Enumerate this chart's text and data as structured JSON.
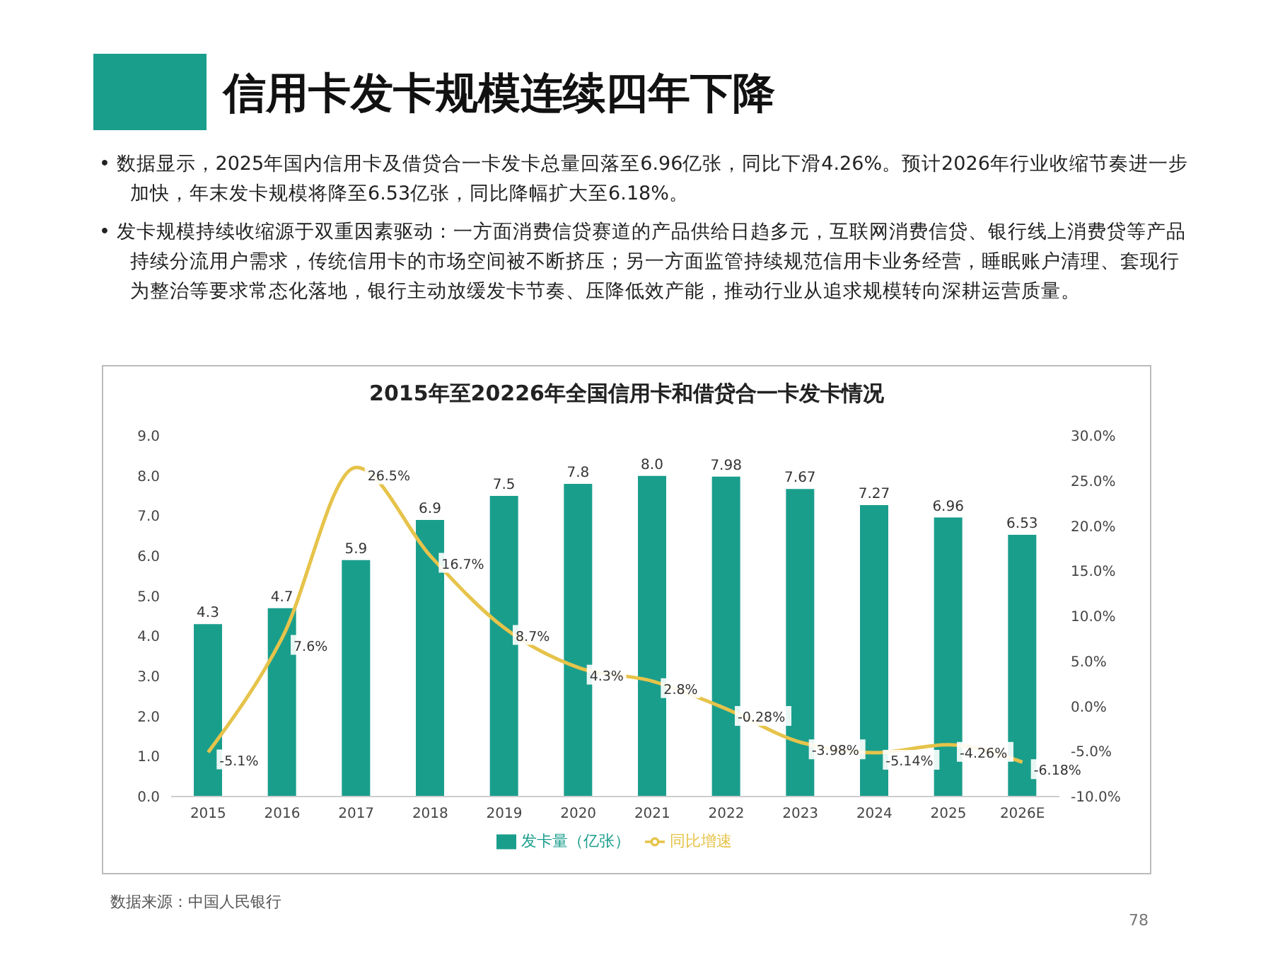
{
  "chart_data": {
    "type": "bar",
    "title": "信用卡发卡规模连续四年下降",
    "subtitle": "2015年至20226年全国信用卡和借贷合一卡发卡情况",
    "annotations": [
      "• 数据显示，2025年国内信用卡及借贷合一卡发卡总量回落至6.96亿张，同比下滑4.26%。预计2026年行业收缩节奏进一步加快，年末发卡规模将降至6.53亿张，同比降幅扩大至6.18%。",
      "• 发卡规模持续收缩源于双重因素驱动：一方面消费信贷赛道的产品供给日趋多元，互联网消费信贷、银行线上消费贷等产品持续分流用户需求，传统信用卡的市场空间被不断挤压；另一方面监管持续规范信用卡业务经营，睡眠账户清理、套现行为整治等要求常态化落地，银行主动放缓发卡节奏、压降低效产能，推动行业从追求规模转向深耕运营质量。",
      "数据来源：中国人民银行",
      "78"
    ],
    "categories": [
      "2015",
      "2016",
      "2017",
      "2018",
      "2019",
      "2020",
      "2021",
      "2022",
      "2023",
      "2024",
      "2025",
      "2026E"
    ],
    "series": [
      {
        "name": "发卡量（亿张）",
        "color": "#1a9e8c",
        "values": [
          4.3,
          4.7,
          5.9,
          6.9,
          7.5,
          7.8,
          8.0,
          7.98,
          7.67,
          7.27,
          6.96,
          6.53
        ],
        "value_labels": [
          "4.3",
          "4.7",
          "5.9",
          "6.9",
          "7.5",
          "7.8",
          "8.0",
          "7.98",
          "7.67",
          "7.27",
          "6.96",
          "6.53"
        ]
      },
      {
        "name": "同比增速",
        "type": "line",
        "axis": "y2",
        "color": "#e6c34a",
        "values": [
          -5.1,
          7.6,
          26.5,
          16.7,
          8.7,
          4.3,
          2.8,
          -0.28,
          -3.98,
          -5.14,
          -4.26,
          -6.18
        ],
        "value_labels": [
          "-5.1%",
          "7.6%",
          "26.5%",
          "16.7%",
          "8.7%",
          "4.3%",
          "2.8%",
          "-0.28%",
          "-3.98%",
          "-5.14%",
          "-4.26%",
          "-6.18%"
        ]
      }
    ],
    "ylim": [
      0,
      9
    ],
    "yticks": [
      {
        "value": 0,
        "label": "0.0"
      },
      {
        "value": 1,
        "label": "1.0"
      },
      {
        "value": 2,
        "label": "2.0"
      },
      {
        "value": 3,
        "label": "3.0"
      },
      {
        "value": 4,
        "label": "4.0"
      },
      {
        "value": 5,
        "label": "5.0"
      },
      {
        "value": 6,
        "label": "6.0"
      },
      {
        "value": 7,
        "label": "7.0"
      },
      {
        "value": 8,
        "label": "8.0"
      },
      {
        "value": 9,
        "label": "9.0"
      }
    ],
    "y2lim": [
      -10,
      30
    ],
    "y2ticks": [
      {
        "value": -10,
        "label": "-10.0%"
      },
      {
        "value": -5,
        "label": "-5.0%"
      },
      {
        "value": 0,
        "label": "0.0%"
      },
      {
        "value": 5,
        "label": "5.0%"
      },
      {
        "value": 10,
        "label": "10.0%"
      },
      {
        "value": 15,
        "label": "15.0%"
      },
      {
        "value": 20,
        "label": "20.0%"
      },
      {
        "value": 25,
        "label": "25.0%"
      },
      {
        "value": 30,
        "label": "30.0%"
      }
    ],
    "grid": false,
    "legend": "bottom",
    "marker": "none",
    "line_style": "solid"
  }
}
